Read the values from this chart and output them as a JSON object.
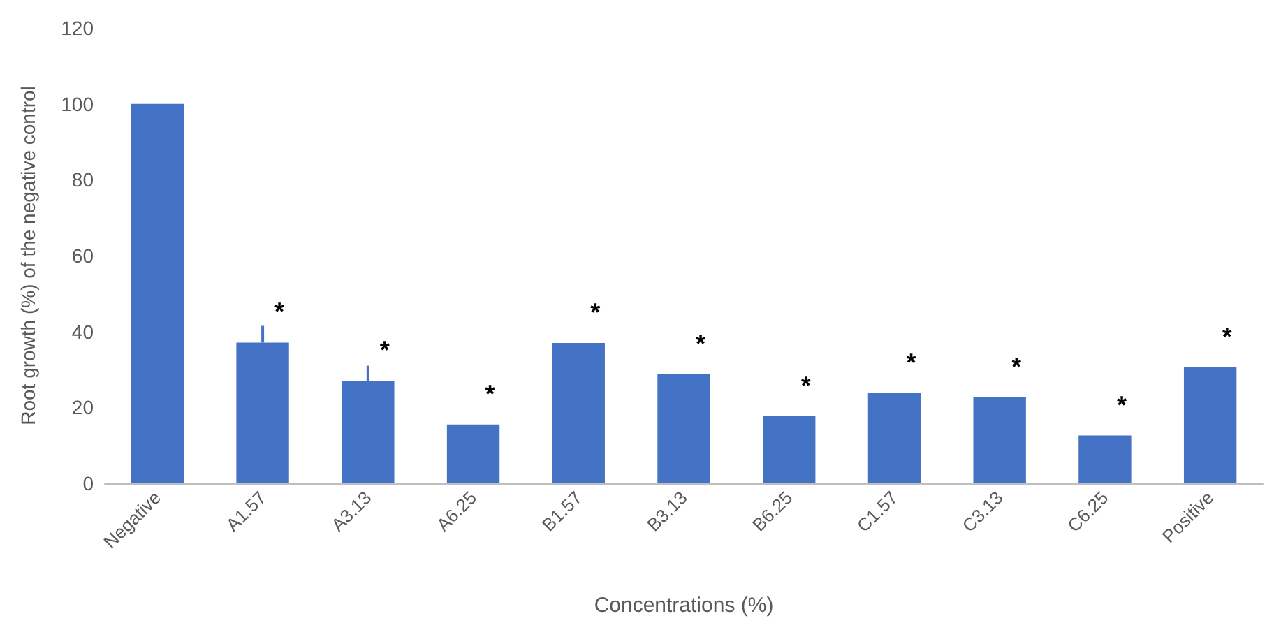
{
  "chart_data": {
    "type": "bar",
    "xlabel": "Concentrations (%)",
    "ylabel": "Root growth (%) of the negative control",
    "categories": [
      "Negative",
      "A1.57",
      "A3.13",
      "A6.25",
      "B1.57",
      "B3.13",
      "B6.25",
      "C1.57",
      "C3.13",
      "C6.25",
      "Positive"
    ],
    "values": [
      100,
      37.1,
      27,
      15.5,
      37,
      28.8,
      17.7,
      23.8,
      22.7,
      12.6,
      30.6
    ],
    "errors": [
      null,
      [
        37.1,
        41.5
      ],
      [
        27,
        31
      ],
      null,
      null,
      null,
      null,
      null,
      null,
      null,
      null
    ],
    "color": "#4472c4",
    "ylim": [
      0,
      120
    ],
    "yticks": [
      0,
      20,
      40,
      60,
      80,
      100,
      120
    ],
    "grid": false,
    "annotations": [
      {
        "text": "*",
        "x": "A1.57",
        "y": 37.1
      },
      {
        "text": "*",
        "x": "A3.13",
        "y": 27
      },
      {
        "text": "*",
        "x": "A6.25",
        "y": 15.5
      },
      {
        "text": "*",
        "x": "B1.57",
        "y": 37
      },
      {
        "text": "*",
        "x": "B3.13",
        "y": 28.8
      },
      {
        "text": "*",
        "x": "B6.25",
        "y": 17.7
      },
      {
        "text": "*",
        "x": "C1.57",
        "y": 23.8
      },
      {
        "text": "*",
        "x": "C3.13",
        "y": 22.7
      },
      {
        "text": "*",
        "x": "C6.25",
        "y": 12.6
      },
      {
        "text": "*",
        "x": "Positive",
        "y": 30.6
      }
    ]
  }
}
